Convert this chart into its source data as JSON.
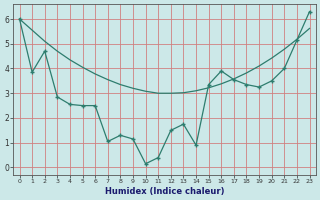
{
  "line1_x": [
    0,
    1,
    2,
    3,
    4,
    5,
    6,
    7,
    8,
    9,
    10,
    11,
    12,
    13,
    14,
    15,
    16,
    17,
    18,
    19,
    20,
    21,
    22,
    23
  ],
  "line1_y": [
    6.0,
    3.85,
    4.7,
    2.85,
    2.55,
    2.5,
    2.5,
    1.05,
    1.3,
    1.15,
    0.15,
    0.4,
    1.5,
    1.75,
    0.9,
    3.35,
    3.9,
    3.55,
    3.35,
    3.25,
    3.5,
    4.0,
    5.15,
    6.3
  ],
  "line2_x": [
    0,
    1,
    2,
    3,
    4,
    5,
    6,
    7,
    8,
    9,
    10,
    11,
    12,
    13,
    14,
    15,
    16,
    17,
    18,
    19,
    20,
    21,
    22,
    23
  ],
  "line2_y": [
    6.0,
    5.55,
    5.1,
    4.7,
    4.35,
    4.05,
    3.78,
    3.55,
    3.35,
    3.2,
    3.08,
    3.0,
    3.0,
    3.02,
    3.1,
    3.22,
    3.38,
    3.58,
    3.82,
    4.1,
    4.42,
    4.78,
    5.18,
    5.62
  ],
  "color": "#2e7d6e",
  "bg_color": "#cce8e8",
  "grid_color": "#d08080",
  "xlabel": "Humidex (Indice chaleur)",
  "ylim": [
    -0.3,
    6.6
  ],
  "xlim": [
    -0.5,
    23.5
  ],
  "yticks": [
    0,
    1,
    2,
    3,
    4,
    5,
    6
  ],
  "xticks": [
    0,
    1,
    2,
    3,
    4,
    5,
    6,
    7,
    8,
    9,
    10,
    11,
    12,
    13,
    14,
    15,
    16,
    17,
    18,
    19,
    20,
    21,
    22,
    23
  ]
}
